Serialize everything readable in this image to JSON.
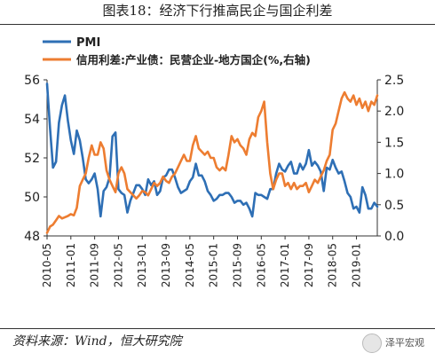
{
  "title": "图表18：经济下行推高民企与国企利差",
  "source": "资料来源：Wind，恒大研究院",
  "watermark": {
    "text": "泽平宏观",
    "icon": "wechat-logo-icon"
  },
  "colors": {
    "pmi": "#2e6fb5",
    "spread": "#ed7d31",
    "axis": "#333333"
  },
  "chart_data": {
    "type": "line",
    "grid": false,
    "legend_position": "top-left",
    "y_left": {
      "range": [
        48,
        56
      ],
      "ticks": [
        48,
        50,
        52,
        54,
        56
      ],
      "tick_labels": [
        "48",
        "50",
        "52",
        "54",
        "56"
      ]
    },
    "y_right": {
      "range": [
        0,
        2.5
      ],
      "ticks": [
        0,
        0.5,
        1,
        1.5,
        2,
        2.5
      ],
      "tick_labels": [
        "0.0",
        "0.5",
        "1.0",
        "1.5",
        "2.0",
        "2.5"
      ]
    },
    "x_range": [
      "2010-05",
      "2019-08"
    ],
    "x_ticks": [
      "2010-05",
      "2011-01",
      "2011-09",
      "2012-05",
      "2013-01",
      "2013-09",
      "2014-05",
      "2015-01",
      "2015-09",
      "2016-05",
      "2017-01",
      "2017-09",
      "2018-05",
      "2019-01"
    ],
    "series": [
      {
        "name": "PMI",
        "axis": "left",
        "x": [
          "2010-05",
          "2010-06",
          "2010-07",
          "2010-08",
          "2010-09",
          "2010-10",
          "2010-11",
          "2010-12",
          "2011-01",
          "2011-02",
          "2011-03",
          "2011-04",
          "2011-05",
          "2011-06",
          "2011-07",
          "2011-08",
          "2011-09",
          "2011-10",
          "2011-11",
          "2011-12",
          "2012-01",
          "2012-02",
          "2012-03",
          "2012-04",
          "2012-05",
          "2012-06",
          "2012-07",
          "2012-08",
          "2012-09",
          "2012-10",
          "2012-11",
          "2012-12",
          "2013-01",
          "2013-02",
          "2013-03",
          "2013-04",
          "2013-05",
          "2013-06",
          "2013-07",
          "2013-08",
          "2013-09",
          "2013-10",
          "2013-11",
          "2013-12",
          "2014-01",
          "2014-02",
          "2014-03",
          "2014-04",
          "2014-05",
          "2014-06",
          "2014-07",
          "2014-08",
          "2014-09",
          "2014-10",
          "2014-11",
          "2014-12",
          "2015-01",
          "2015-02",
          "2015-03",
          "2015-04",
          "2015-05",
          "2015-06",
          "2015-07",
          "2015-08",
          "2015-09",
          "2015-10",
          "2015-11",
          "2015-12",
          "2016-01",
          "2016-02",
          "2016-03",
          "2016-04",
          "2016-05",
          "2016-06",
          "2016-07",
          "2016-08",
          "2016-09",
          "2016-10",
          "2016-11",
          "2016-12",
          "2017-01",
          "2017-02",
          "2017-03",
          "2017-04",
          "2017-05",
          "2017-06",
          "2017-07",
          "2017-08",
          "2017-09",
          "2017-10",
          "2017-11",
          "2017-12",
          "2018-01",
          "2018-02",
          "2018-03",
          "2018-04",
          "2018-05",
          "2018-06",
          "2018-07",
          "2018-08",
          "2018-09",
          "2018-10",
          "2018-11",
          "2018-12",
          "2019-01",
          "2019-02",
          "2019-03",
          "2019-04",
          "2019-05",
          "2019-06",
          "2019-07",
          "2019-08"
        ],
        "values": [
          55.8,
          53.5,
          51.5,
          51.8,
          53.8,
          54.7,
          55.2,
          53.9,
          52.9,
          52.2,
          53.4,
          52.9,
          52.0,
          50.9,
          50.7,
          50.9,
          51.2,
          50.4,
          49.0,
          50.3,
          50.5,
          51.0,
          53.1,
          53.3,
          50.4,
          50.2,
          50.1,
          49.2,
          49.8,
          50.2,
          50.6,
          50.6,
          50.4,
          50.1,
          50.9,
          50.6,
          50.8,
          50.1,
          50.3,
          51.0,
          51.1,
          51.4,
          51.4,
          51.0,
          50.5,
          50.2,
          50.3,
          50.4,
          50.8,
          51.0,
          51.7,
          51.1,
          51.1,
          50.8,
          50.3,
          50.1,
          49.8,
          49.9,
          50.1,
          50.1,
          50.2,
          50.2,
          50.0,
          49.7,
          49.8,
          49.8,
          49.6,
          49.7,
          49.4,
          49.0,
          50.2,
          50.1,
          50.1,
          50.0,
          49.9,
          50.4,
          50.4,
          51.2,
          51.7,
          51.4,
          51.3,
          51.6,
          51.8,
          51.2,
          51.2,
          51.7,
          51.4,
          51.7,
          52.4,
          51.6,
          51.8,
          51.6,
          51.3,
          50.3,
          51.5,
          51.4,
          51.9,
          51.5,
          51.2,
          51.3,
          50.8,
          50.2,
          50.0,
          49.4,
          49.5,
          49.2,
          50.5,
          50.1,
          49.4,
          49.4,
          49.7,
          49.5
        ]
      },
      {
        "name": "信用利差:产业债：民营企业-地方国企(%,右轴)",
        "axis": "right",
        "x": [
          "2010-05",
          "2010-06",
          "2010-07",
          "2010-08",
          "2010-09",
          "2010-10",
          "2010-11",
          "2010-12",
          "2011-01",
          "2011-02",
          "2011-03",
          "2011-04",
          "2011-05",
          "2011-06",
          "2011-07",
          "2011-08",
          "2011-09",
          "2011-10",
          "2011-11",
          "2011-12",
          "2012-01",
          "2012-02",
          "2012-03",
          "2012-04",
          "2012-05",
          "2012-06",
          "2012-07",
          "2012-08",
          "2012-09",
          "2012-10",
          "2012-11",
          "2012-12",
          "2013-01",
          "2013-02",
          "2013-03",
          "2013-04",
          "2013-05",
          "2013-06",
          "2013-07",
          "2013-08",
          "2013-09",
          "2013-10",
          "2013-11",
          "2013-12",
          "2014-01",
          "2014-02",
          "2014-03",
          "2014-04",
          "2014-05",
          "2014-06",
          "2014-07",
          "2014-08",
          "2014-09",
          "2014-10",
          "2014-11",
          "2014-12",
          "2015-01",
          "2015-02",
          "2015-03",
          "2015-04",
          "2015-05",
          "2015-06",
          "2015-07",
          "2015-08",
          "2015-09",
          "2015-10",
          "2015-11",
          "2015-12",
          "2016-01",
          "2016-02",
          "2016-03",
          "2016-04",
          "2016-05",
          "2016-06",
          "2016-07",
          "2016-08",
          "2016-09",
          "2016-10",
          "2016-11",
          "2016-12",
          "2017-01",
          "2017-02",
          "2017-03",
          "2017-04",
          "2017-05",
          "2017-06",
          "2017-07",
          "2017-08",
          "2017-09",
          "2017-10",
          "2017-11",
          "2017-12",
          "2018-01",
          "2018-02",
          "2018-03",
          "2018-04",
          "2018-05",
          "2018-06",
          "2018-07",
          "2018-08",
          "2018-09",
          "2018-10",
          "2018-11",
          "2018-12",
          "2019-01",
          "2019-02",
          "2019-03",
          "2019-04",
          "2019-05",
          "2019-06",
          "2019-07",
          "2019-08"
        ],
        "values": [
          0.05,
          0.15,
          0.18,
          0.25,
          0.32,
          0.28,
          0.3,
          0.32,
          0.35,
          0.33,
          0.45,
          0.8,
          0.9,
          1.0,
          1.25,
          1.45,
          1.3,
          1.3,
          1.5,
          1.4,
          1.05,
          0.9,
          0.8,
          0.7,
          1.0,
          1.1,
          1.0,
          0.75,
          0.7,
          0.65,
          0.6,
          0.65,
          0.72,
          0.7,
          0.65,
          0.75,
          0.85,
          0.8,
          0.85,
          0.95,
          0.88,
          0.85,
          0.95,
          1.0,
          1.1,
          1.2,
          1.3,
          1.2,
          1.2,
          1.45,
          1.6,
          1.4,
          1.35,
          1.3,
          1.35,
          1.25,
          1.25,
          1.1,
          1.05,
          1.1,
          1.05,
          1.3,
          1.6,
          1.5,
          1.55,
          1.45,
          1.4,
          1.3,
          1.55,
          1.65,
          1.6,
          1.9,
          2.0,
          2.15,
          1.5,
          1.0,
          0.75,
          0.9,
          1.0,
          1.0,
          0.8,
          0.85,
          0.75,
          0.85,
          0.75,
          0.8,
          0.8,
          0.85,
          0.7,
          0.8,
          0.9,
          0.85,
          0.95,
          1.05,
          1.2,
          1.3,
          1.7,
          1.8,
          2.0,
          2.2,
          2.3,
          2.2,
          2.15,
          2.25,
          2.1,
          2.2,
          2.05,
          2.15,
          2.0,
          2.15,
          2.1,
          2.25
        ]
      }
    ]
  }
}
